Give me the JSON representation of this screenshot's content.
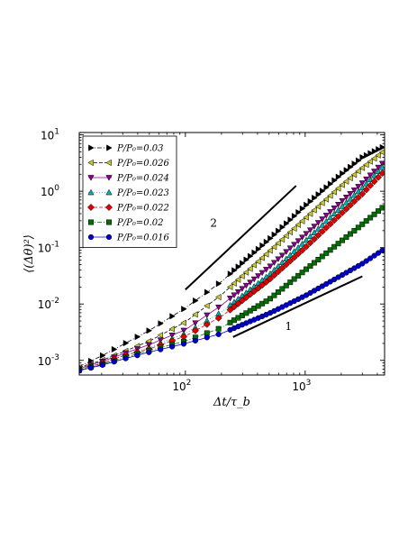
{
  "chart_data": {
    "type": "scatter",
    "title": "",
    "xlabel": "Δt/τ_b",
    "ylabel": "⟨(Δθ)²⟩",
    "xscale": "log",
    "yscale": "log",
    "xlim": [
      13,
      4600
    ],
    "ylim": [
      0.00055,
      11
    ],
    "x_ticks": [
      {
        "value": 100,
        "label": "10",
        "exp": "2"
      },
      {
        "value": 1000,
        "label": "10",
        "exp": "3"
      }
    ],
    "y_ticks": [
      {
        "value": 0.001,
        "label": "10",
        "exp": "-3"
      },
      {
        "value": 0.01,
        "label": "10",
        "exp": "-2"
      },
      {
        "value": 0.1,
        "label": "10",
        "exp": "-1"
      },
      {
        "value": 1,
        "label": "10",
        "exp": "0"
      },
      {
        "value": 10,
        "label": "10",
        "exp": "1"
      }
    ],
    "legend_position": "top-left",
    "series": [
      {
        "name": "P/P₀=0.03",
        "color": "#000000",
        "marker": "triangle-right",
        "linestyle": "dashdot",
        "anchors": [
          [
            13,
            0.00078
          ],
          [
            20,
            0.0012
          ],
          [
            30,
            0.0019
          ],
          [
            50,
            0.0034
          ],
          [
            100,
            0.0085
          ],
          [
            200,
            0.025
          ],
          [
            500,
            0.14
          ],
          [
            1000,
            0.55
          ],
          [
            2000,
            2.0
          ],
          [
            3000,
            4.0
          ],
          [
            4600,
            6.3
          ]
        ]
      },
      {
        "name": "P/P₀=0.026",
        "color": "#c8c832",
        "marker": "triangle-left",
        "linestyle": "dashed",
        "anchors": [
          [
            13,
            0.00075
          ],
          [
            20,
            0.001
          ],
          [
            30,
            0.0014
          ],
          [
            50,
            0.0022
          ],
          [
            100,
            0.0048
          ],
          [
            200,
            0.0145
          ],
          [
            500,
            0.085
          ],
          [
            1000,
            0.33
          ],
          [
            2000,
            1.25
          ],
          [
            3000,
            2.6
          ],
          [
            4600,
            5.3
          ]
        ]
      },
      {
        "name": "P/P₀=0.024",
        "color": "#8b008b",
        "marker": "triangle-down",
        "linestyle": "solid",
        "anchors": [
          [
            13,
            0.00072
          ],
          [
            20,
            0.00095
          ],
          [
            30,
            0.0013
          ],
          [
            50,
            0.0019
          ],
          [
            100,
            0.0035
          ],
          [
            200,
            0.0095
          ],
          [
            500,
            0.045
          ],
          [
            1000,
            0.17
          ],
          [
            2000,
            0.65
          ],
          [
            3000,
            1.4
          ],
          [
            4600,
            3.4
          ]
        ]
      },
      {
        "name": "P/P₀=0.023",
        "color": "#00b3b3",
        "marker": "triangle-up",
        "linestyle": "dotted",
        "anchors": [
          [
            13,
            0.0007
          ],
          [
            20,
            0.0009
          ],
          [
            30,
            0.0012
          ],
          [
            50,
            0.0017
          ],
          [
            100,
            0.003
          ],
          [
            200,
            0.0072
          ],
          [
            500,
            0.033
          ],
          [
            1000,
            0.13
          ],
          [
            2000,
            0.52
          ],
          [
            3000,
            1.15
          ],
          [
            4600,
            2.9
          ]
        ]
      },
      {
        "name": "P/P₀=0.022",
        "color": "#e00000",
        "marker": "diamond",
        "linestyle": "dashed",
        "anchors": [
          [
            13,
            0.00069
          ],
          [
            20,
            0.00088
          ],
          [
            30,
            0.0012
          ],
          [
            50,
            0.0016
          ],
          [
            100,
            0.0027
          ],
          [
            200,
            0.006
          ],
          [
            500,
            0.027
          ],
          [
            1000,
            0.1
          ],
          [
            2000,
            0.4
          ],
          [
            3000,
            0.9
          ],
          [
            4600,
            2.3
          ]
        ]
      },
      {
        "name": "P/P₀=0.02",
        "color": "#007000",
        "marker": "square",
        "linestyle": "dashdot",
        "anchors": [
          [
            13,
            0.00068
          ],
          [
            20,
            0.00085
          ],
          [
            30,
            0.0011
          ],
          [
            50,
            0.0015
          ],
          [
            100,
            0.0022
          ],
          [
            200,
            0.0038
          ],
          [
            500,
            0.012
          ],
          [
            1000,
            0.04
          ],
          [
            2000,
            0.13
          ],
          [
            3000,
            0.26
          ],
          [
            4600,
            0.55
          ]
        ]
      },
      {
        "name": "P/P₀=0.016",
        "color": "#0000cc",
        "marker": "circle",
        "linestyle": "solid",
        "anchors": [
          [
            13,
            0.00066
          ],
          [
            20,
            0.00082
          ],
          [
            30,
            0.00105
          ],
          [
            50,
            0.0014
          ],
          [
            100,
            0.002
          ],
          [
            200,
            0.003
          ],
          [
            500,
            0.0068
          ],
          [
            1000,
            0.014
          ],
          [
            2000,
            0.032
          ],
          [
            3000,
            0.052
          ],
          [
            4600,
            0.095
          ]
        ]
      }
    ],
    "annotations": [
      {
        "type": "slope-line",
        "label": "2",
        "from": [
          100,
          0.018
        ],
        "to": [
          840,
          1.25
        ]
      },
      {
        "type": "slope-line",
        "label": "1",
        "from": [
          250,
          0.0026
        ],
        "to": [
          3000,
          0.031
        ]
      }
    ]
  }
}
